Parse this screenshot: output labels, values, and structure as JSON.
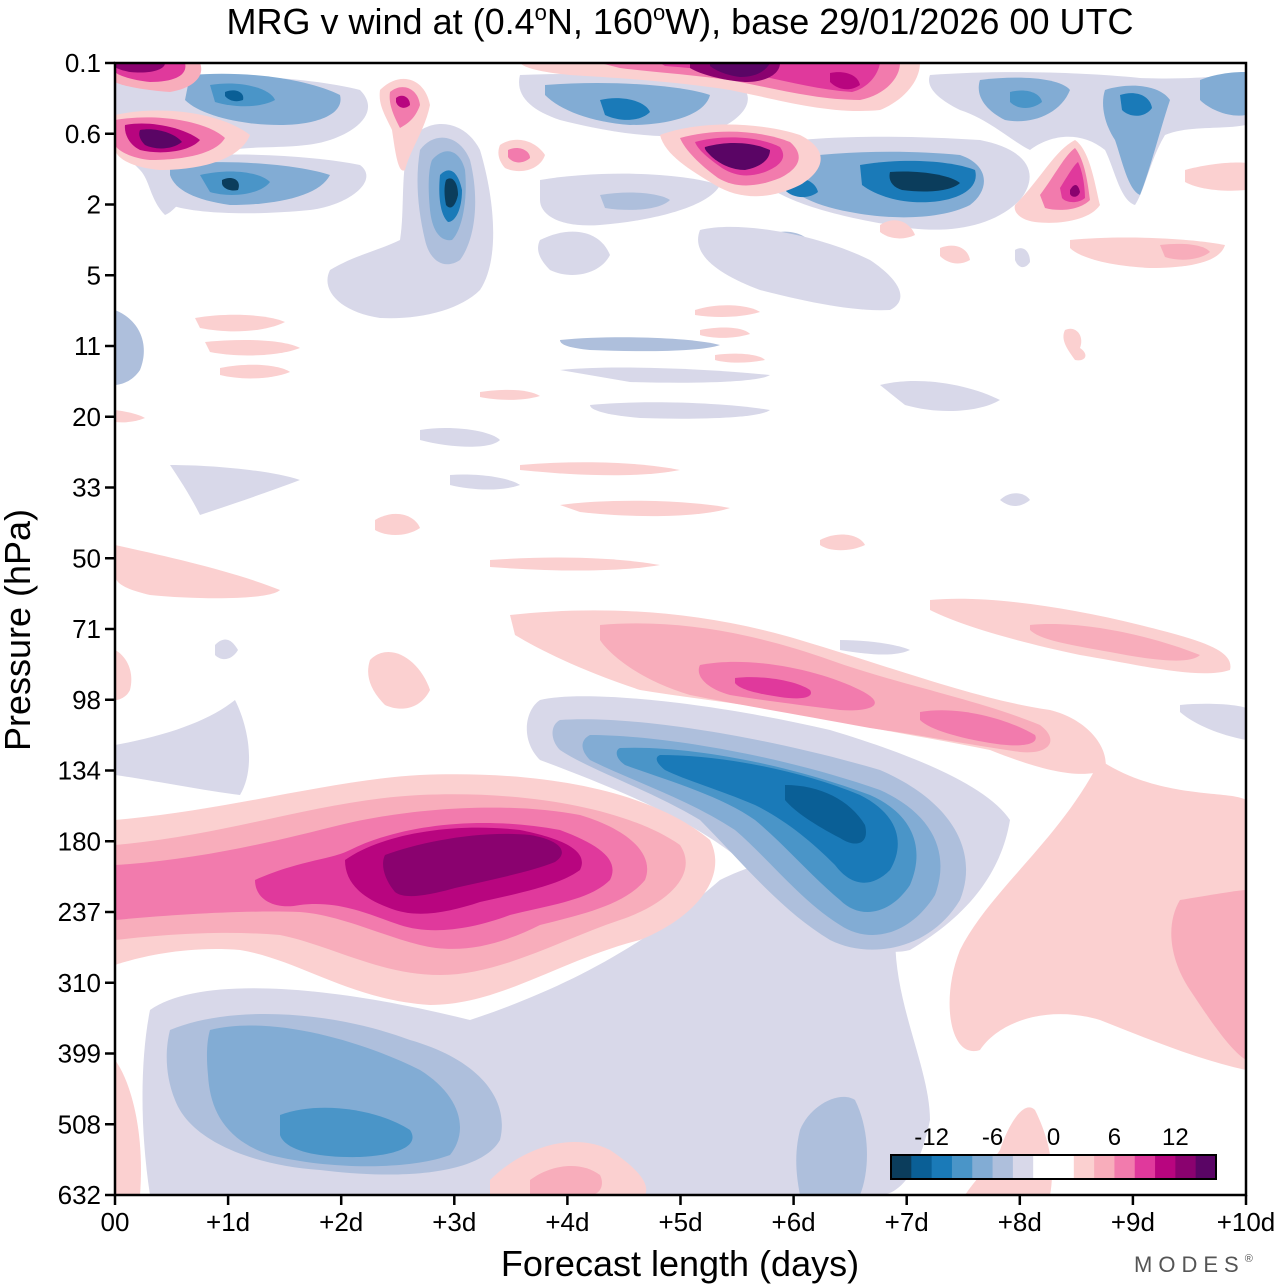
{
  "chart_data": {
    "type": "heatmap",
    "subtype": "filled-contour",
    "title": "MRG v wind at (0.4°N, 160°W),  base 29/01/2026  00 UTC",
    "title_parts": [
      "MRG v wind at (0.4",
      "o",
      "N, 160",
      "o",
      "W),  base 29/01/2026  00 UTC"
    ],
    "xlabel": "Forecast length (days)",
    "ylabel": "Pressure (hPa)",
    "x_ticks": [
      "00",
      "+1d",
      "+2d",
      "+3d",
      "+4d",
      "+5d",
      "+6d",
      "+7d",
      "+8d",
      "+9d",
      "+10d"
    ],
    "x_range_days": [
      0,
      10
    ],
    "y_ticks": [
      "0.1",
      "0.6",
      "2",
      "5",
      "11",
      "20",
      "33",
      "50",
      "71",
      "98",
      "134",
      "180",
      "237",
      "310",
      "399",
      "508",
      "632"
    ],
    "y_range_hpa": [
      0.1,
      632
    ],
    "colorbar": {
      "tick_labels": [
        "-12",
        "-6",
        "0",
        "6",
        "12"
      ],
      "tick_values": [
        -12,
        -6,
        0,
        6,
        12
      ],
      "levels": [
        -16,
        -14,
        -12,
        -10,
        -8,
        -6,
        -4,
        -2,
        2,
        4,
        6,
        8,
        10,
        12,
        14,
        16
      ],
      "colors": [
        "#0b3d5c",
        "#0a5f96",
        "#1a7ab8",
        "#4a95c8",
        "#82acd4",
        "#aebfdc",
        "#d8d8e9",
        "#ffffff",
        "#ffffff",
        "#fbd0d0",
        "#f8adbb",
        "#f27bad",
        "#e0399c",
        "#b8057f",
        "#8a026f",
        "#5a0565"
      ]
    },
    "features": [
      {
        "name": "negative-core-180-1000hPa-day5.5",
        "x_day": 5.6,
        "y_hpa": 180,
        "value": -14
      },
      {
        "name": "positive-core-200hPa-day3",
        "x_day": 3.0,
        "y_hpa": 200,
        "value": 15
      },
      {
        "name": "negative-core-500hPa-day2",
        "x_day": 2.0,
        "y_hpa": 480,
        "value": -9
      },
      {
        "name": "positive-band-98hPa-day6",
        "x_day": 6.0,
        "y_hpa": 95,
        "value": 11
      },
      {
        "name": "positive-core-0.6hPa-day5.5",
        "x_day": 5.5,
        "y_hpa": 0.8,
        "value": 16
      },
      {
        "name": "negative-core-2hPa-day3",
        "x_day": 3.0,
        "y_hpa": 1.6,
        "value": -16
      },
      {
        "name": "negative-core-1.5hPa-day7",
        "x_day": 7.1,
        "y_hpa": 1.4,
        "value": -15
      }
    ]
  },
  "branding": {
    "logo": "MODES",
    "mark": "®"
  }
}
